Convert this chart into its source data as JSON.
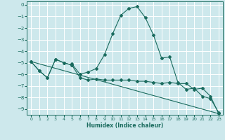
{
  "xlabel": "Humidex (Indice chaleur)",
  "ylabel": "",
  "xlim": [
    -0.5,
    23.5
  ],
  "ylim": [
    -9.5,
    0.3
  ],
  "yticks": [
    0,
    -1,
    -2,
    -3,
    -4,
    -5,
    -6,
    -7,
    -8,
    -9
  ],
  "xticks": [
    0,
    1,
    2,
    3,
    4,
    5,
    6,
    7,
    8,
    9,
    10,
    11,
    12,
    13,
    14,
    15,
    16,
    17,
    18,
    19,
    20,
    21,
    22,
    23
  ],
  "bg_color": "#cde8ec",
  "grid_color": "#ffffff",
  "line_color": "#1a6b5e",
  "line1_x": [
    0,
    1,
    2,
    3,
    4,
    5,
    5,
    6,
    7,
    8,
    9,
    10,
    11,
    12,
    13,
    14,
    15,
    16,
    17,
    18,
    19,
    20,
    21,
    22,
    23
  ],
  "line1_y": [
    -4.9,
    -5.7,
    -6.3,
    -4.7,
    -5.0,
    -5.2,
    -5.1,
    -6.0,
    -5.8,
    -5.5,
    -4.3,
    -2.5,
    -0.9,
    -0.3,
    -0.15,
    -1.1,
    -2.6,
    -4.6,
    -4.5,
    -6.7,
    -7.3,
    -7.2,
    -7.9,
    -8.1,
    -9.3
  ],
  "line2_x": [
    0,
    1,
    2,
    3,
    4,
    5,
    6,
    7,
    8,
    9,
    10,
    11,
    12,
    13,
    14,
    15,
    16,
    17,
    18,
    19,
    20,
    21,
    22,
    23
  ],
  "line2_y": [
    -4.9,
    -5.7,
    -6.3,
    -4.7,
    -5.0,
    -5.2,
    -6.3,
    -6.5,
    -6.4,
    -6.5,
    -6.5,
    -6.5,
    -6.5,
    -6.6,
    -6.6,
    -6.7,
    -6.8,
    -6.7,
    -6.8,
    -6.8,
    -7.3,
    -7.2,
    -7.9,
    -9.4
  ],
  "line3_x": [
    0,
    23
  ],
  "line3_y": [
    -4.9,
    -9.4
  ]
}
